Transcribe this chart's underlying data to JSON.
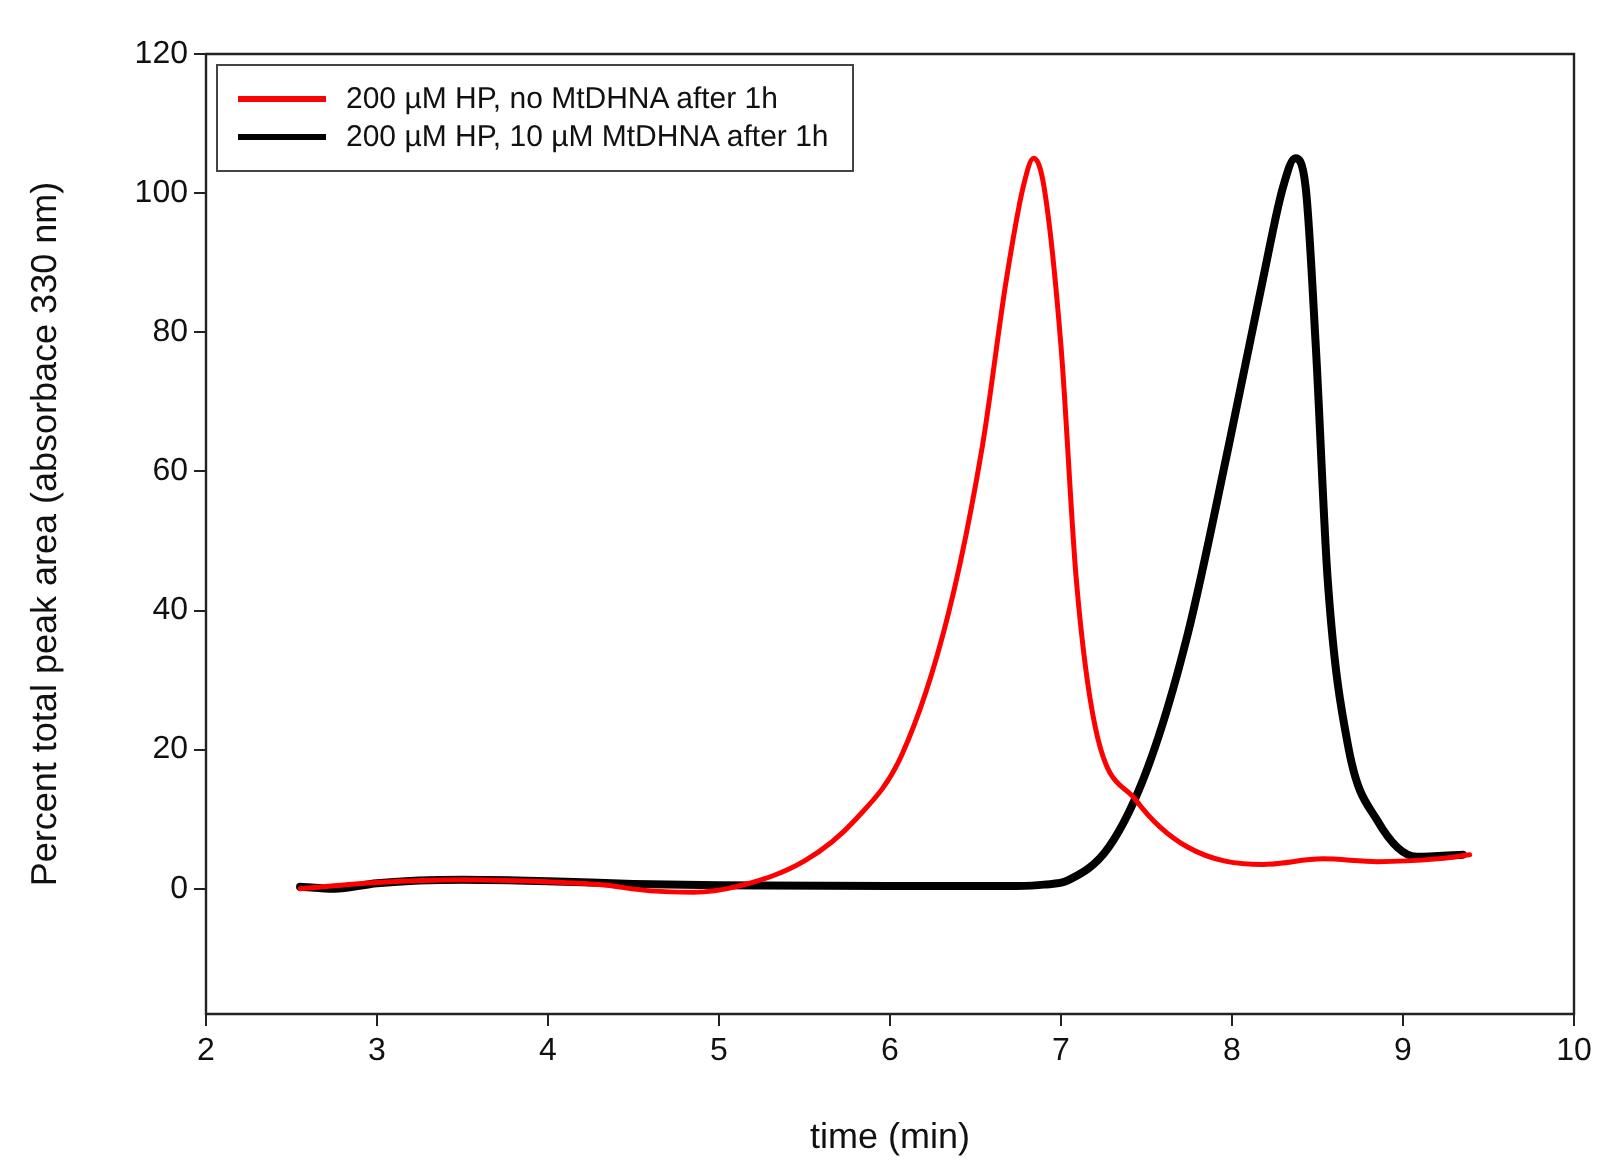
{
  "chart_data": {
    "type": "line",
    "xlabel": "time (min)",
    "ylabel": "Percent total peak area (absorbace 330 nm)",
    "xlim": [
      2,
      10
    ],
    "xticks": [
      2,
      3,
      4,
      5,
      6,
      7,
      8,
      9,
      10
    ],
    "ylim": [
      -18,
      120
    ],
    "yticks": [
      0,
      20,
      40,
      60,
      80,
      100,
      120
    ],
    "grid": false,
    "legend": "top left",
    "marker": "none",
    "line_style": "solid",
    "series": [
      {
        "name": "200 µM HP, no MtDHNA after 1h",
        "color": "#ff0000",
        "x": [
          2.55,
          3.0,
          3.5,
          4.0,
          4.3,
          4.6,
          4.85,
          5.1,
          5.5,
          5.8,
          6.07,
          6.34,
          6.54,
          6.68,
          6.78,
          6.84,
          6.9,
          7.0,
          7.09,
          7.2,
          7.44,
          7.74,
          8.18,
          8.53,
          8.85,
          9.2,
          9.39
        ],
        "values": [
          0,
          0.9,
          1.3,
          1.0,
          0.6,
          -0.3,
          -0.5,
          0.3,
          4,
          10,
          19.3,
          39.4,
          63.6,
          87.5,
          101,
          105,
          101,
          78,
          44.3,
          23.3,
          12.7,
          6,
          3.5,
          4.3,
          3.9,
          4.3,
          4.9
        ]
      },
      {
        "name": "200 µM HP, 10 µM MtDHNA after 1h",
        "color": "#000000",
        "x": [
          2.55,
          2.75,
          3.0,
          3.5,
          4.0,
          4.5,
          5.0,
          6.0,
          6.7,
          6.9,
          7.04,
          7.28,
          7.51,
          7.74,
          7.98,
          8.18,
          8.3,
          8.37,
          8.43,
          8.49,
          8.56,
          8.68,
          8.85,
          9.08,
          9.35
        ],
        "values": [
          0.3,
          0,
          0.8,
          1.3,
          1.1,
          0.7,
          0.5,
          0.4,
          0.4,
          0.6,
          1.2,
          6,
          17.6,
          36.5,
          63.6,
          87.5,
          101,
          105,
          101,
          78,
          44.3,
          20.4,
          9.8,
          4.6,
          4.9
        ]
      }
    ]
  }
}
